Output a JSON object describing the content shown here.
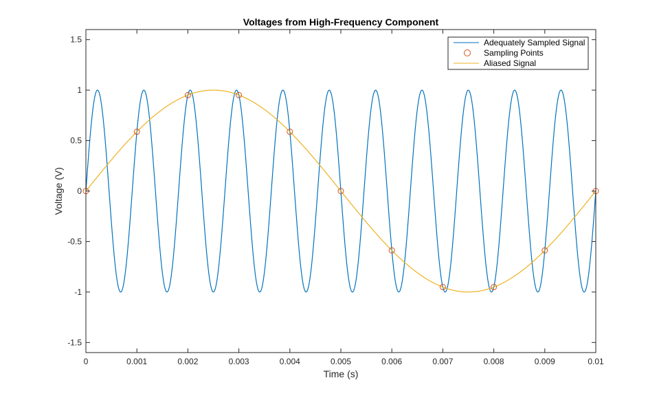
{
  "chart_data": {
    "type": "line",
    "title": "Voltages from High-Frequency Component",
    "xlabel": "Time (s)",
    "ylabel": "Voltage (V)",
    "xlim": [
      0,
      0.01
    ],
    "ylim": [
      -1.6,
      1.6
    ],
    "xticks": [
      0,
      0.001,
      0.002,
      0.003,
      0.004,
      0.005,
      0.006,
      0.007,
      0.008,
      0.009,
      0.01
    ],
    "xtick_labels": [
      "0",
      "0.001",
      "0.002",
      "0.003",
      "0.004",
      "0.005",
      "0.006",
      "0.007",
      "0.008",
      "0.009",
      "0.01"
    ],
    "yticks": [
      -1.5,
      -1,
      -0.5,
      0,
      0.5,
      1,
      1.5
    ],
    "ytick_labels": [
      "-1.5",
      "-1",
      "-0.5",
      "0",
      "0.5",
      "1",
      "1.5"
    ],
    "grid": false,
    "legend_position": "top-right",
    "series": [
      {
        "name": "Adequately Sampled Signal",
        "kind": "line",
        "color": "#0072BD",
        "frequency_hz": 1100,
        "amplitude": 1
      },
      {
        "name": "Sampling Points",
        "kind": "markers",
        "color": "#D95319",
        "x": [
          0,
          0.001,
          0.002,
          0.003,
          0.004,
          0.005,
          0.006,
          0.007,
          0.008,
          0.009,
          0.01
        ],
        "y": [
          0,
          0.588,
          0.951,
          0.951,
          0.588,
          0,
          -0.588,
          -0.951,
          -0.951,
          -0.588,
          0
        ]
      },
      {
        "name": "Aliased Signal",
        "kind": "line",
        "color": "#EDB120",
        "frequency_hz": 100,
        "amplitude": 1
      }
    ]
  }
}
